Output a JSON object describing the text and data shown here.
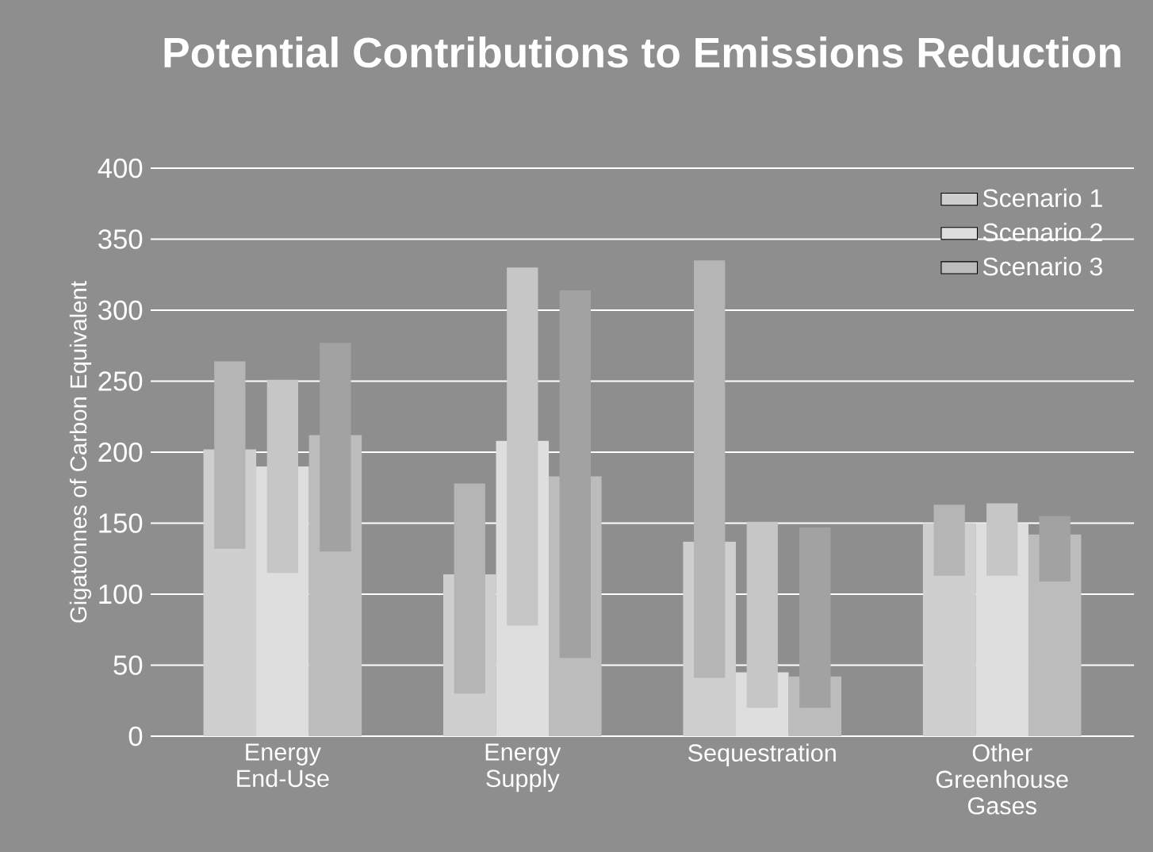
{
  "chart_data": {
    "type": "bar",
    "title": "Potential Contributions to Emissions Reduction",
    "ylabel": "Gigatonnes of Carbon Equivalent",
    "categories": [
      "Energy End-Use",
      "Energy Supply",
      "Sequestration",
      "Other Greenhouse Gases"
    ],
    "series": [
      {
        "name": "Scenario 1",
        "color": "#cfcfcf",
        "values": [
          202,
          114,
          137,
          150
        ]
      },
      {
        "name": "Scenario 2",
        "color": "#dedede",
        "values": [
          190,
          208,
          45,
          150
        ]
      },
      {
        "name": "Scenario 3",
        "color": "#bcbcbc",
        "values": [
          212,
          183,
          42,
          142
        ]
      },
      {
        "color": "#b5b5b5",
        "base": [
          132,
          30,
          41,
          113
        ],
        "values": [
          132,
          148,
          294,
          50
        ]
      },
      {
        "color": "#c6c6c6",
        "base": [
          115,
          78,
          20,
          113
        ],
        "values": [
          136,
          252,
          131,
          51
        ]
      },
      {
        "color": "#a2a2a2",
        "base": [
          130,
          55,
          20,
          109
        ],
        "values": [
          147,
          259,
          127,
          46
        ]
      }
    ],
    "ylim": [
      0,
      400
    ],
    "yticks": [
      0,
      50,
      100,
      150,
      200,
      250,
      300,
      350,
      400
    ],
    "grid": "y",
    "legend": "top right"
  }
}
